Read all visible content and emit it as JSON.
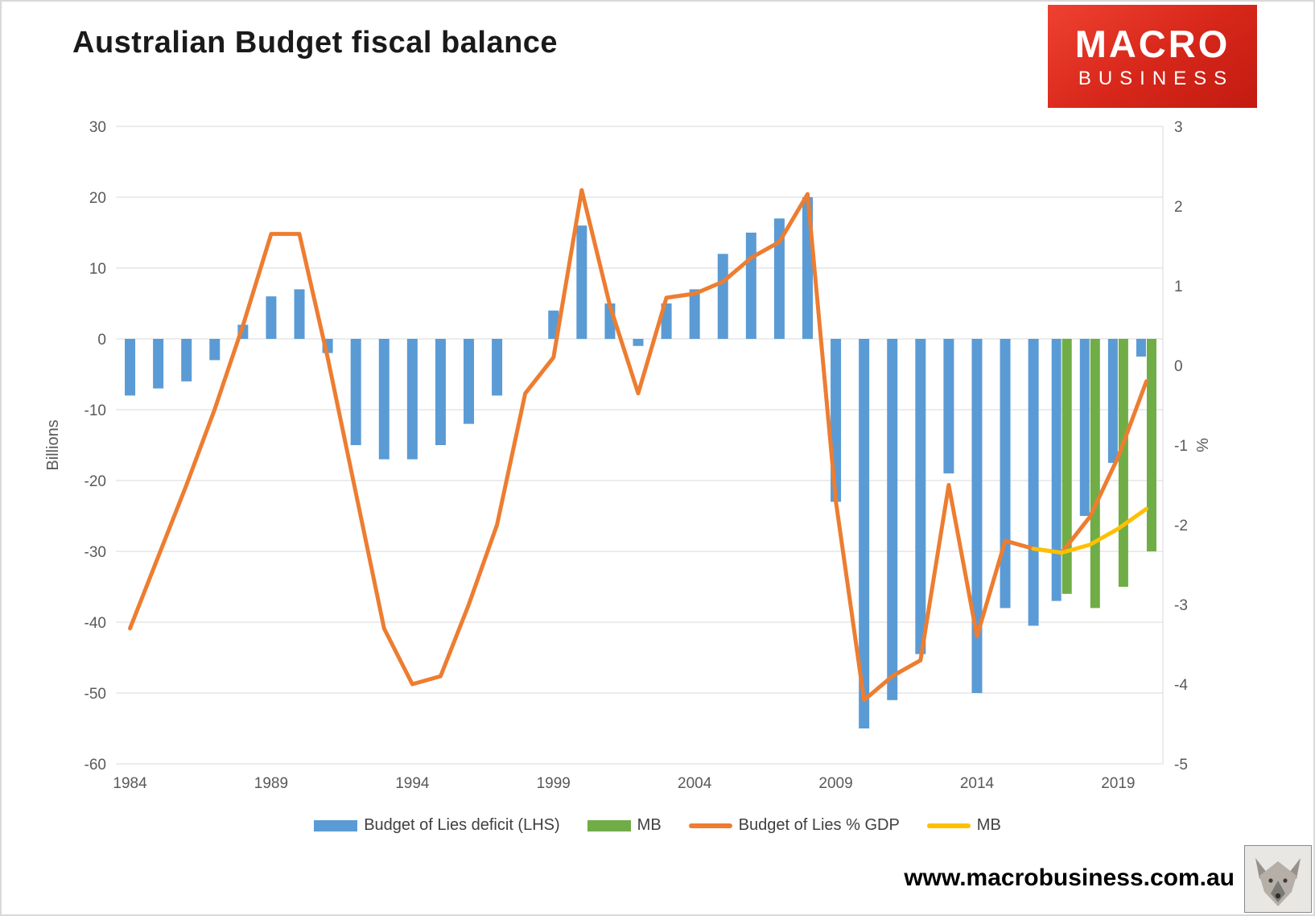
{
  "title": "Australian Budget fiscal balance",
  "logo": {
    "line1": "MACRO",
    "line2": "BUSINESS"
  },
  "footer": {
    "url": "www.macrobusiness.com.au"
  },
  "colors": {
    "bar_blue": "#5B9BD5",
    "bar_green": "#70AD47",
    "line_orange": "#ED7D31",
    "line_yellow": "#FFC000",
    "grid": "#D9D9D9",
    "axis_text": "#595959",
    "logo_red": "#D6261A"
  },
  "legend": [
    {
      "label": "Budget of Lies deficit (LHS)",
      "type": "bar",
      "color": "#5B9BD5"
    },
    {
      "label": "MB",
      "type": "bar",
      "color": "#70AD47"
    },
    {
      "label": "Budget of Lies % GDP",
      "type": "line",
      "color": "#ED7D31"
    },
    {
      "label": "MB",
      "type": "line",
      "color": "#FFC000"
    }
  ],
  "chart_data": {
    "type": "bar+line",
    "title": "Australian Budget fiscal balance",
    "x": [
      1984,
      1985,
      1986,
      1987,
      1988,
      1989,
      1990,
      1991,
      1992,
      1993,
      1994,
      1995,
      1996,
      1997,
      1998,
      1999,
      2000,
      2001,
      2002,
      2003,
      2004,
      2005,
      2006,
      2007,
      2008,
      2009,
      2010,
      2011,
      2012,
      2013,
      2014,
      2015,
      2016,
      2017,
      2018,
      2019,
      2020
    ],
    "x_ticks": [
      1984,
      1989,
      1994,
      1999,
      2004,
      2009,
      2014,
      2019
    ],
    "left_axis": {
      "label": "Billions",
      "range": [
        -60,
        30
      ],
      "ticks": [
        30,
        20,
        10,
        0,
        -10,
        -20,
        -30,
        -40,
        -50,
        -60
      ]
    },
    "right_axis": {
      "label": "%",
      "range": [
        -5,
        3
      ],
      "ticks": [
        3,
        2,
        1,
        0,
        -1,
        -2,
        -3,
        -4,
        -5
      ]
    },
    "grid": true,
    "legend_position": "bottom",
    "series": [
      {
        "name": "Budget of Lies deficit (LHS)",
        "type": "bar",
        "axis": "left",
        "color": "#5B9BD5",
        "values": [
          -8,
          -7,
          -6,
          -3,
          2,
          6,
          7,
          -2,
          -15,
          -17,
          -17,
          -15,
          -12,
          -8,
          0,
          4,
          16,
          5,
          -1,
          5,
          7,
          12,
          15,
          17,
          20,
          -23,
          -55,
          -51,
          -44.5,
          -19,
          -50,
          -38,
          -40.5,
          -37,
          -25,
          -17.5,
          -2.5
        ]
      },
      {
        "name": "MB",
        "type": "bar",
        "axis": "left",
        "color": "#70AD47",
        "values": [
          null,
          null,
          null,
          null,
          null,
          null,
          null,
          null,
          null,
          null,
          null,
          null,
          null,
          null,
          null,
          null,
          null,
          null,
          null,
          null,
          null,
          null,
          null,
          null,
          null,
          null,
          null,
          null,
          null,
          null,
          null,
          null,
          null,
          -36,
          -38,
          -35,
          -30
        ]
      },
      {
        "name": "Budget of Lies % GDP",
        "type": "line",
        "axis": "right",
        "color": "#ED7D31",
        "values": [
          -3.3,
          -2.4,
          -1.5,
          -0.55,
          0.5,
          1.65,
          1.65,
          0.1,
          -1.6,
          -3.3,
          -4.0,
          -3.9,
          -3.0,
          -2.0,
          -0.35,
          0.1,
          2.2,
          0.75,
          -0.35,
          0.85,
          0.9,
          1.05,
          1.35,
          1.55,
          2.15,
          -1.7,
          -4.2,
          -3.9,
          -3.7,
          -1.5,
          -3.4,
          -2.2,
          -2.3,
          -2.35,
          -1.9,
          -1.15,
          -0.2
        ]
      },
      {
        "name": "MB",
        "type": "line",
        "axis": "right",
        "color": "#FFC000",
        "values": [
          null,
          null,
          null,
          null,
          null,
          null,
          null,
          null,
          null,
          null,
          null,
          null,
          null,
          null,
          null,
          null,
          null,
          null,
          null,
          null,
          null,
          null,
          null,
          null,
          null,
          null,
          null,
          null,
          null,
          null,
          null,
          null,
          -2.3,
          -2.35,
          -2.25,
          -2.05,
          -1.8
        ]
      }
    ]
  }
}
